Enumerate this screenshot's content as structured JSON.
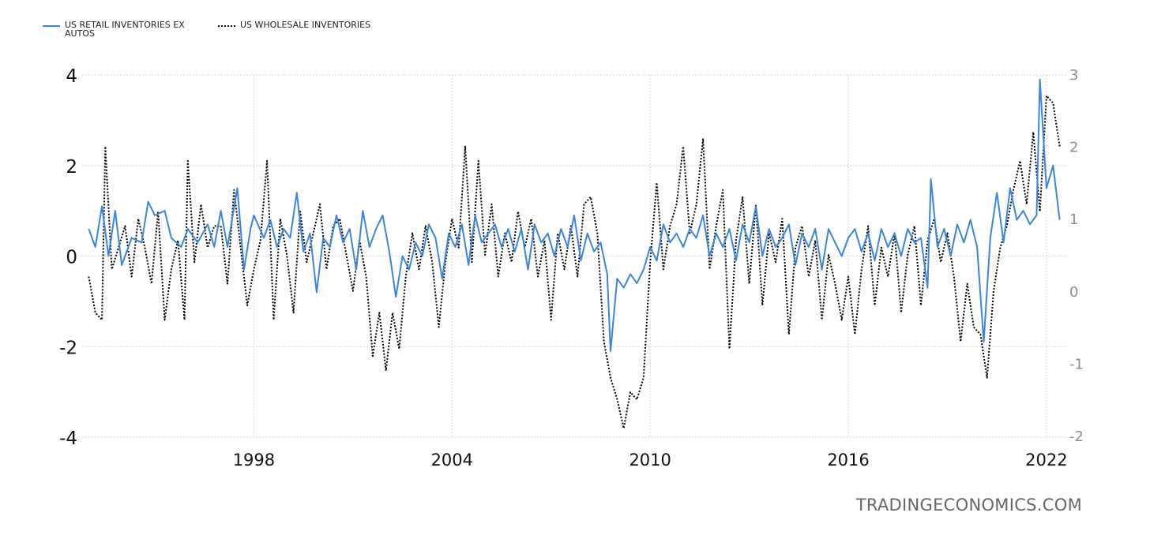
{
  "legend": {
    "series1": "US RETAIL INVENTORIES EX AUTOS",
    "series2": "US WHOLESALE INVENTORIES"
  },
  "watermark": "TRADINGECONOMICS.COM",
  "colors": {
    "retail": "#3b86d9",
    "wholesale": "#000000",
    "grid": "#d6d6d6",
    "right_axis_text": "#8c8c8c"
  },
  "chart_data": {
    "type": "line",
    "x_range": [
      1992.8,
      2022.6
    ],
    "x_ticks": [
      "1998",
      "2004",
      "2010",
      "2016",
      "2022"
    ],
    "left_axis": {
      "range": [
        -4,
        4
      ],
      "ticks": [
        "4",
        "2",
        "0",
        "-2",
        "-4"
      ]
    },
    "right_axis": {
      "range": [
        -2,
        3
      ],
      "ticks": [
        "3",
        "2",
        "1",
        "0",
        "-1",
        "-2"
      ]
    },
    "grid": true,
    "legend_position": "top-left",
    "series": [
      {
        "name": "US RETAIL INVENTORIES EX AUTOS",
        "axis": "left",
        "style": "solid",
        "points": [
          [
            1993.0,
            0.6
          ],
          [
            1993.2,
            0.2
          ],
          [
            1993.4,
            1.1
          ],
          [
            1993.6,
            0.0
          ],
          [
            1993.8,
            1.0
          ],
          [
            1994.0,
            -0.2
          ],
          [
            1994.3,
            0.4
          ],
          [
            1994.6,
            0.3
          ],
          [
            1994.8,
            1.2
          ],
          [
            1995.0,
            0.9
          ],
          [
            1995.3,
            1.0
          ],
          [
            1995.5,
            0.4
          ],
          [
            1995.8,
            0.2
          ],
          [
            1996.0,
            0.6
          ],
          [
            1996.3,
            0.3
          ],
          [
            1996.6,
            0.7
          ],
          [
            1996.8,
            0.2
          ],
          [
            1997.0,
            1.0
          ],
          [
            1997.2,
            0.2
          ],
          [
            1997.5,
            1.5
          ],
          [
            1997.7,
            -0.3
          ],
          [
            1997.9,
            0.6
          ],
          [
            1998.0,
            0.9
          ],
          [
            1998.3,
            0.4
          ],
          [
            1998.5,
            0.8
          ],
          [
            1998.7,
            0.2
          ],
          [
            1998.9,
            0.6
          ],
          [
            1999.1,
            0.4
          ],
          [
            1999.3,
            1.4
          ],
          [
            1999.5,
            0.1
          ],
          [
            1999.7,
            0.5
          ],
          [
            1999.9,
            -0.8
          ],
          [
            2000.1,
            0.4
          ],
          [
            2000.3,
            0.2
          ],
          [
            2000.5,
            0.9
          ],
          [
            2000.7,
            0.3
          ],
          [
            2000.9,
            0.6
          ],
          [
            2001.1,
            -0.3
          ],
          [
            2001.3,
            1.0
          ],
          [
            2001.5,
            0.2
          ],
          [
            2001.7,
            0.6
          ],
          [
            2001.9,
            0.9
          ],
          [
            2002.1,
            0.1
          ],
          [
            2002.3,
            -0.9
          ],
          [
            2002.5,
            0.0
          ],
          [
            2002.7,
            -0.3
          ],
          [
            2002.9,
            0.3
          ],
          [
            2003.1,
            0.0
          ],
          [
            2003.3,
            0.7
          ],
          [
            2003.5,
            0.4
          ],
          [
            2003.7,
            -0.5
          ],
          [
            2003.9,
            0.5
          ],
          [
            2004.1,
            0.2
          ],
          [
            2004.3,
            0.7
          ],
          [
            2004.5,
            -0.2
          ],
          [
            2004.7,
            0.9
          ],
          [
            2004.9,
            0.3
          ],
          [
            2005.1,
            0.5
          ],
          [
            2005.3,
            0.7
          ],
          [
            2005.5,
            0.2
          ],
          [
            2005.7,
            0.6
          ],
          [
            2005.9,
            0.1
          ],
          [
            2006.1,
            0.6
          ],
          [
            2006.3,
            -0.3
          ],
          [
            2006.5,
            0.7
          ],
          [
            2006.7,
            0.3
          ],
          [
            2006.9,
            0.5
          ],
          [
            2007.1,
            0.0
          ],
          [
            2007.3,
            0.6
          ],
          [
            2007.5,
            0.2
          ],
          [
            2007.7,
            0.9
          ],
          [
            2007.9,
            -0.1
          ],
          [
            2008.1,
            0.5
          ],
          [
            2008.3,
            0.1
          ],
          [
            2008.5,
            0.3
          ],
          [
            2008.7,
            -0.4
          ],
          [
            2008.8,
            -2.1
          ],
          [
            2009.0,
            -0.5
          ],
          [
            2009.2,
            -0.7
          ],
          [
            2009.4,
            -0.4
          ],
          [
            2009.6,
            -0.6
          ],
          [
            2009.8,
            -0.3
          ],
          [
            2010.0,
            0.2
          ],
          [
            2010.2,
            -0.1
          ],
          [
            2010.4,
            0.7
          ],
          [
            2010.6,
            0.3
          ],
          [
            2010.8,
            0.5
          ],
          [
            2011.0,
            0.2
          ],
          [
            2011.2,
            0.6
          ],
          [
            2011.4,
            0.4
          ],
          [
            2011.6,
            0.9
          ],
          [
            2011.8,
            0.0
          ],
          [
            2012.0,
            0.5
          ],
          [
            2012.2,
            0.2
          ],
          [
            2012.4,
            0.6
          ],
          [
            2012.6,
            -0.1
          ],
          [
            2012.8,
            0.7
          ],
          [
            2013.0,
            0.3
          ],
          [
            2013.2,
            1.1
          ],
          [
            2013.4,
            0.0
          ],
          [
            2013.6,
            0.6
          ],
          [
            2013.8,
            0.2
          ],
          [
            2014.0,
            0.4
          ],
          [
            2014.2,
            0.7
          ],
          [
            2014.4,
            -0.2
          ],
          [
            2014.6,
            0.5
          ],
          [
            2014.8,
            0.2
          ],
          [
            2015.0,
            0.6
          ],
          [
            2015.2,
            -0.3
          ],
          [
            2015.4,
            0.6
          ],
          [
            2015.6,
            0.3
          ],
          [
            2015.8,
            0.0
          ],
          [
            2016.0,
            0.4
          ],
          [
            2016.2,
            0.6
          ],
          [
            2016.4,
            0.1
          ],
          [
            2016.6,
            0.5
          ],
          [
            2016.8,
            -0.1
          ],
          [
            2017.0,
            0.6
          ],
          [
            2017.2,
            0.2
          ],
          [
            2017.4,
            0.5
          ],
          [
            2017.6,
            0.0
          ],
          [
            2017.8,
            0.6
          ],
          [
            2018.0,
            0.3
          ],
          [
            2018.2,
            0.4
          ],
          [
            2018.4,
            -0.7
          ],
          [
            2018.5,
            1.7
          ],
          [
            2018.7,
            0.2
          ],
          [
            2018.9,
            0.6
          ],
          [
            2019.1,
            0.0
          ],
          [
            2019.3,
            0.7
          ],
          [
            2019.5,
            0.3
          ],
          [
            2019.7,
            0.8
          ],
          [
            2019.9,
            0.2
          ],
          [
            2020.1,
            -1.9
          ],
          [
            2020.3,
            0.4
          ],
          [
            2020.5,
            1.4
          ],
          [
            2020.7,
            0.3
          ],
          [
            2020.9,
            1.5
          ],
          [
            2021.1,
            0.8
          ],
          [
            2021.3,
            1.0
          ],
          [
            2021.5,
            0.7
          ],
          [
            2021.7,
            0.9
          ],
          [
            2021.8,
            3.9
          ],
          [
            2022.0,
            1.5
          ],
          [
            2022.2,
            2.0
          ],
          [
            2022.4,
            0.8
          ]
        ]
      },
      {
        "name": "US WHOLESALE INVENTORIES",
        "axis": "right",
        "style": "dotted",
        "points": [
          [
            1993.0,
            0.2
          ],
          [
            1993.2,
            -0.3
          ],
          [
            1993.4,
            -0.4
          ],
          [
            1993.5,
            2.0
          ],
          [
            1993.7,
            0.3
          ],
          [
            1993.9,
            0.6
          ],
          [
            1994.1,
            0.9
          ],
          [
            1994.3,
            0.2
          ],
          [
            1994.5,
            1.0
          ],
          [
            1994.7,
            0.6
          ],
          [
            1994.9,
            0.1
          ],
          [
            1995.1,
            1.1
          ],
          [
            1995.3,
            -0.4
          ],
          [
            1995.5,
            0.3
          ],
          [
            1995.7,
            0.7
          ],
          [
            1995.9,
            -0.4
          ],
          [
            1996.0,
            1.8
          ],
          [
            1996.2,
            0.4
          ],
          [
            1996.4,
            1.2
          ],
          [
            1996.6,
            0.6
          ],
          [
            1996.8,
            0.9
          ],
          [
            1997.0,
            0.9
          ],
          [
            1997.2,
            0.1
          ],
          [
            1997.4,
            1.4
          ],
          [
            1997.6,
            0.6
          ],
          [
            1997.8,
            -0.2
          ],
          [
            1998.0,
            0.3
          ],
          [
            1998.2,
            0.7
          ],
          [
            1998.4,
            1.8
          ],
          [
            1998.6,
            -0.4
          ],
          [
            1998.8,
            1.0
          ],
          [
            1999.0,
            0.5
          ],
          [
            1999.2,
            -0.3
          ],
          [
            1999.4,
            1.1
          ],
          [
            1999.6,
            0.4
          ],
          [
            1999.8,
            0.8
          ],
          [
            2000.0,
            1.2
          ],
          [
            2000.2,
            0.3
          ],
          [
            2000.4,
            0.9
          ],
          [
            2000.6,
            1.0
          ],
          [
            2000.8,
            0.5
          ],
          [
            2001.0,
            0.0
          ],
          [
            2001.2,
            0.7
          ],
          [
            2001.4,
            0.2
          ],
          [
            2001.6,
            -0.9
          ],
          [
            2001.8,
            -0.3
          ],
          [
            2002.0,
            -1.1
          ],
          [
            2002.2,
            -0.3
          ],
          [
            2002.4,
            -0.8
          ],
          [
            2002.6,
            0.2
          ],
          [
            2002.8,
            0.8
          ],
          [
            2003.0,
            0.3
          ],
          [
            2003.2,
            0.9
          ],
          [
            2003.4,
            0.4
          ],
          [
            2003.6,
            -0.5
          ],
          [
            2003.8,
            0.4
          ],
          [
            2004.0,
            1.0
          ],
          [
            2004.2,
            0.6
          ],
          [
            2004.4,
            2.0
          ],
          [
            2004.6,
            0.4
          ],
          [
            2004.8,
            1.8
          ],
          [
            2005.0,
            0.5
          ],
          [
            2005.2,
            1.2
          ],
          [
            2005.4,
            0.2
          ],
          [
            2005.6,
            0.8
          ],
          [
            2005.8,
            0.4
          ],
          [
            2006.0,
            1.1
          ],
          [
            2006.2,
            0.6
          ],
          [
            2006.4,
            1.0
          ],
          [
            2006.6,
            0.2
          ],
          [
            2006.8,
            0.7
          ],
          [
            2007.0,
            -0.4
          ],
          [
            2007.2,
            0.8
          ],
          [
            2007.4,
            0.3
          ],
          [
            2007.6,
            0.9
          ],
          [
            2007.8,
            0.2
          ],
          [
            2008.0,
            1.2
          ],
          [
            2008.2,
            1.3
          ],
          [
            2008.4,
            0.8
          ],
          [
            2008.6,
            -0.7
          ],
          [
            2008.8,
            -1.2
          ],
          [
            2009.0,
            -1.5
          ],
          [
            2009.2,
            -1.9
          ],
          [
            2009.4,
            -1.4
          ],
          [
            2009.6,
            -1.5
          ],
          [
            2009.8,
            -1.2
          ],
          [
            2010.0,
            0.4
          ],
          [
            2010.2,
            1.5
          ],
          [
            2010.4,
            0.3
          ],
          [
            2010.6,
            0.9
          ],
          [
            2010.8,
            1.2
          ],
          [
            2011.0,
            2.0
          ],
          [
            2011.2,
            0.8
          ],
          [
            2011.4,
            1.2
          ],
          [
            2011.6,
            2.1
          ],
          [
            2011.8,
            0.3
          ],
          [
            2012.0,
            0.9
          ],
          [
            2012.2,
            1.4
          ],
          [
            2012.4,
            -0.8
          ],
          [
            2012.6,
            0.7
          ],
          [
            2012.8,
            1.3
          ],
          [
            2013.0,
            0.1
          ],
          [
            2013.2,
            1.2
          ],
          [
            2013.4,
            -0.2
          ],
          [
            2013.6,
            0.8
          ],
          [
            2013.8,
            0.4
          ],
          [
            2014.0,
            1.0
          ],
          [
            2014.2,
            -0.6
          ],
          [
            2014.4,
            0.6
          ],
          [
            2014.6,
            0.9
          ],
          [
            2014.8,
            0.2
          ],
          [
            2015.0,
            0.7
          ],
          [
            2015.2,
            -0.4
          ],
          [
            2015.4,
            0.5
          ],
          [
            2015.6,
            0.1
          ],
          [
            2015.8,
            -0.4
          ],
          [
            2016.0,
            0.2
          ],
          [
            2016.2,
            -0.6
          ],
          [
            2016.4,
            0.3
          ],
          [
            2016.6,
            0.9
          ],
          [
            2016.8,
            -0.2
          ],
          [
            2017.0,
            0.6
          ],
          [
            2017.2,
            0.2
          ],
          [
            2017.4,
            0.8
          ],
          [
            2017.6,
            -0.3
          ],
          [
            2017.8,
            0.5
          ],
          [
            2018.0,
            0.9
          ],
          [
            2018.2,
            -0.2
          ],
          [
            2018.4,
            0.7
          ],
          [
            2018.6,
            1.0
          ],
          [
            2018.8,
            0.4
          ],
          [
            2019.0,
            0.8
          ],
          [
            2019.2,
            0.2
          ],
          [
            2019.4,
            -0.7
          ],
          [
            2019.6,
            0.1
          ],
          [
            2019.8,
            -0.5
          ],
          [
            2020.0,
            -0.6
          ],
          [
            2020.2,
            -1.2
          ],
          [
            2020.4,
            0.0
          ],
          [
            2020.6,
            0.6
          ],
          [
            2020.8,
            0.9
          ],
          [
            2021.0,
            1.4
          ],
          [
            2021.2,
            1.8
          ],
          [
            2021.4,
            1.2
          ],
          [
            2021.6,
            2.2
          ],
          [
            2021.8,
            1.1
          ],
          [
            2022.0,
            2.7
          ],
          [
            2022.2,
            2.6
          ],
          [
            2022.4,
            2.0
          ]
        ]
      }
    ]
  }
}
